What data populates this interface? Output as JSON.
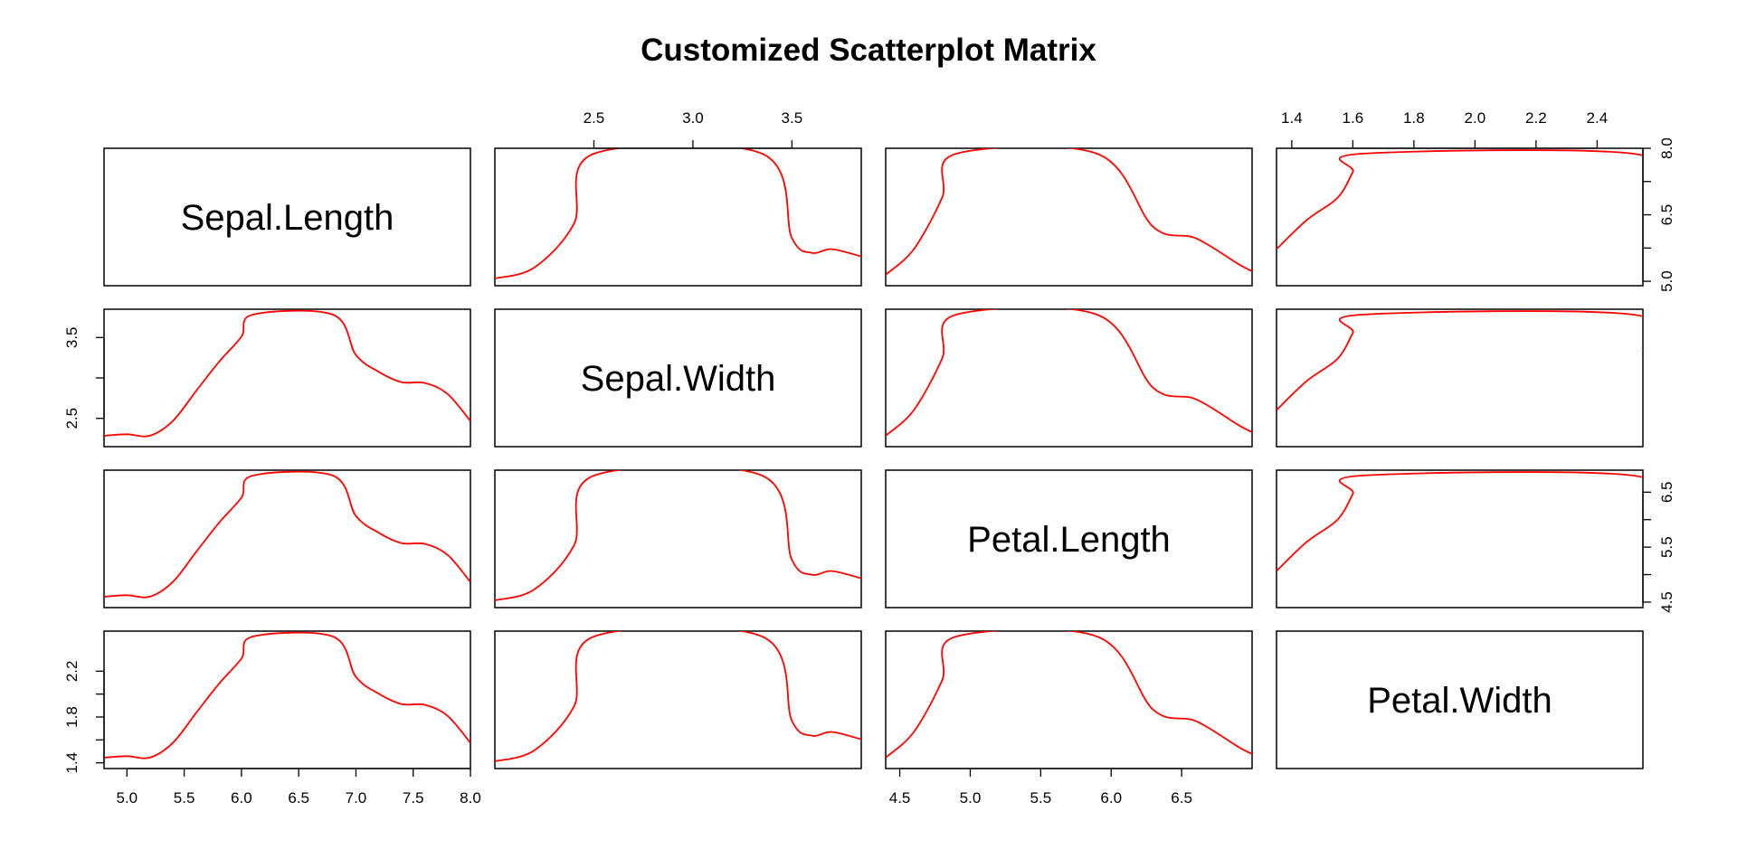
{
  "title": "Customized Scatterplot Matrix",
  "accent_color": "#ff0000",
  "chart_data": {
    "type": "scatterplot-matrix",
    "title": "Customized Scatterplot Matrix",
    "variables": [
      "Sepal.Length",
      "Sepal.Width",
      "Petal.Length",
      "Petal.Width"
    ],
    "curve_color": "#ff0000",
    "axes": {
      "Sepal.Length": {
        "ticks": [
          "5.0",
          "5.5",
          "6.0",
          "6.5",
          "7.0",
          "7.5",
          "8.0"
        ],
        "range": [
          4.8,
          8.0
        ]
      },
      "Sepal.Width": {
        "ticks": [
          "2.5",
          "3.0",
          "3.5"
        ],
        "range": [
          2.0,
          3.85
        ]
      },
      "Petal.Length": {
        "ticks": [
          "4.5",
          "5.0",
          "5.5",
          "6.0",
          "6.5"
        ],
        "range": [
          4.4,
          7.0
        ]
      },
      "Petal.Width": {
        "ticks": [
          "1.4",
          "1.6",
          "1.8",
          "2.0",
          "2.2",
          "2.4"
        ],
        "range": [
          1.35,
          2.55
        ]
      }
    },
    "left_axis": {
      "Sepal.Width": {
        "ticks": [
          "2.5",
          "3.5"
        ],
        "range": [
          2.15,
          3.85
        ]
      },
      "Petal.Width": {
        "ticks": [
          "1.4",
          "1.8",
          "2.2"
        ],
        "range": [
          1.35,
          2.55
        ]
      }
    },
    "right_axis": {
      "Sepal.Length": {
        "ticks": [
          "5.0",
          "6.5",
          "8.0"
        ],
        "range": [
          4.9,
          8.0
        ]
      },
      "Petal.Length": {
        "ticks": [
          "4.5",
          "5.5",
          "6.5"
        ],
        "range": [
          4.4,
          6.9
        ]
      }
    },
    "smoothers": {
      "shape_A": {
        "x": [
          4.8,
          5.0,
          5.2,
          5.4,
          5.6,
          5.8,
          6.0,
          6.1,
          6.8,
          7.0,
          7.2,
          7.4,
          7.6,
          7.8,
          8.0
        ],
        "y": [
          2.25,
          2.27,
          2.25,
          2.45,
          2.85,
          3.25,
          3.6,
          3.9,
          3.9,
          3.35,
          3.12,
          2.98,
          2.97,
          2.82,
          2.45
        ]
      },
      "shape_B": {
        "x": [
          2.0,
          2.2,
          2.4,
          2.5,
          3.35,
          3.5,
          3.6,
          3.7,
          3.85
        ],
        "y": [
          2.2,
          2.35,
          2.95,
          3.9,
          3.9,
          2.75,
          2.55,
          2.6,
          2.5
        ]
      },
      "shape_C": {
        "x": [
          4.4,
          4.6,
          4.8,
          4.9,
          5.9,
          6.3,
          6.6,
          6.9,
          7.0
        ],
        "y": [
          2.25,
          2.6,
          3.3,
          3.9,
          3.9,
          2.9,
          2.75,
          2.4,
          2.3
        ]
      },
      "shape_D": {
        "x": [
          1.35,
          1.45,
          1.55,
          1.6,
          1.63,
          2.52,
          2.55
        ],
        "y": [
          2.6,
          3.0,
          3.3,
          3.65,
          3.9,
          3.9,
          3.4
        ]
      }
    },
    "panels": [
      {
        "row": "Sepal.Length",
        "col": "Sepal.Width",
        "shape": "shape_B"
      },
      {
        "row": "Sepal.Length",
        "col": "Petal.Length",
        "shape": "shape_C"
      },
      {
        "row": "Sepal.Length",
        "col": "Petal.Width",
        "shape": "shape_D"
      },
      {
        "row": "Sepal.Width",
        "col": "Sepal.Length",
        "shape": "shape_A"
      },
      {
        "row": "Sepal.Width",
        "col": "Petal.Length",
        "shape": "shape_C"
      },
      {
        "row": "Sepal.Width",
        "col": "Petal.Width",
        "shape": "shape_D"
      },
      {
        "row": "Petal.Length",
        "col": "Sepal.Length",
        "shape": "shape_A"
      },
      {
        "row": "Petal.Length",
        "col": "Sepal.Width",
        "shape": "shape_B"
      },
      {
        "row": "Petal.Length",
        "col": "Petal.Width",
        "shape": "shape_D"
      },
      {
        "row": "Petal.Width",
        "col": "Sepal.Length",
        "shape": "shape_A"
      },
      {
        "row": "Petal.Width",
        "col": "Sepal.Width",
        "shape": "shape_B"
      },
      {
        "row": "Petal.Width",
        "col": "Petal.Length",
        "shape": "shape_C"
      }
    ]
  }
}
